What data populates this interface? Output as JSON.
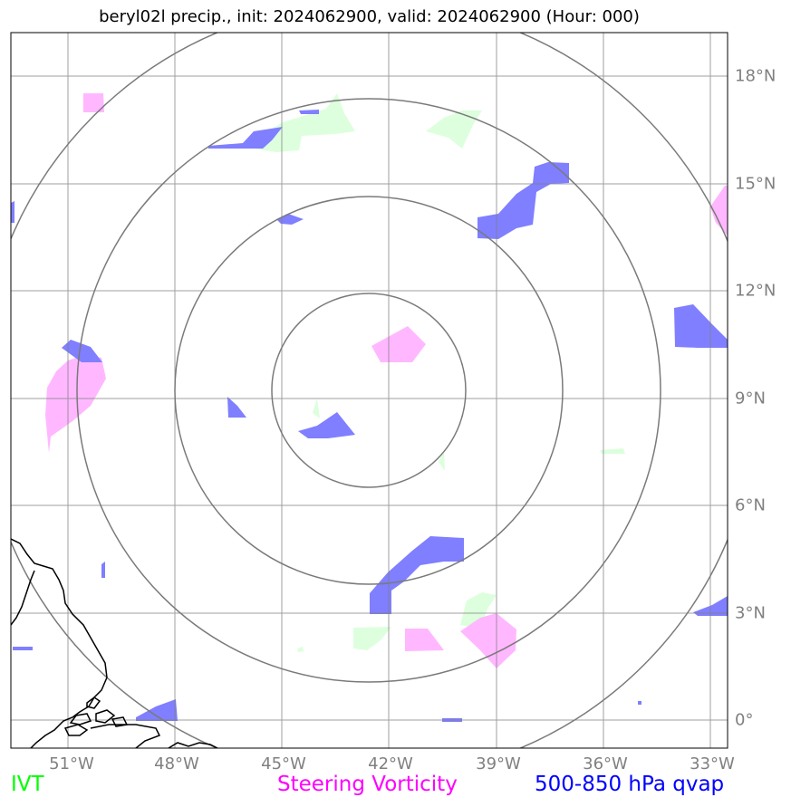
{
  "title": "beryl02l precip., init: 2024062900, valid: 2024062900 (Hour: 000)",
  "lon_labels": [
    "51°W",
    "48°W",
    "45°W",
    "42°W",
    "39°W",
    "36°W",
    "33°W"
  ],
  "lat_labels": [
    "18°N",
    "15°N",
    "12°N",
    "9°N",
    "6°N",
    "3°N",
    "0°"
  ],
  "legend": {
    "ivt": "IVT",
    "vorticity": "Steering Vorticity",
    "qvap": "500-850 hPa qvap"
  },
  "colors": {
    "ivt": "#00ff00",
    "vorticity": "#ff00ff",
    "qvap": "#0000ff",
    "grid": "#808080",
    "ivt_fill": "#ddffdd",
    "vorticity_fill": "#ffb8ff",
    "qvap_fill": "#7f7fff"
  }
}
